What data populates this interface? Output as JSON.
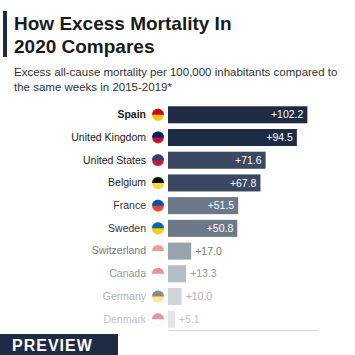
{
  "chart_data": {
    "type": "bar",
    "orientation": "horizontal",
    "title": "How Excess Mortality In 2020 Compares",
    "subtitle": "Excess all-cause mortality per 100,000 inhabitants compared to the same weeks in 2015-2019*",
    "categories": [
      "Spain",
      "United Kingdom",
      "United States",
      "Belgium",
      "France",
      "Sweden",
      "Switzerland",
      "Canada",
      "Germany",
      "Denmark"
    ],
    "values": [
      102.2,
      94.5,
      71.6,
      67.8,
      51.5,
      50.8,
      17.0,
      13.3,
      10.0,
      5.1
    ],
    "value_labels": [
      "+102.2",
      "+94.5",
      "+71.6",
      "+67.8",
      "+51.5",
      "+50.8",
      "+17.0",
      "+13.3",
      "+10.0",
      "+5.1"
    ],
    "colors": [
      "#1d2b45",
      "#1d2b45",
      "#3a4861",
      "#3a4861",
      "#6d7889",
      "#6d7889",
      "#9aa2ad",
      "#b6bcc4",
      "#d0d4d9",
      "#e2e4e7"
    ],
    "xlim": [
      0,
      110
    ],
    "xticks": [],
    "tick_labels": false,
    "data_labels": true,
    "grid": false,
    "annotations": [
      "PREVIEW"
    ]
  }
}
